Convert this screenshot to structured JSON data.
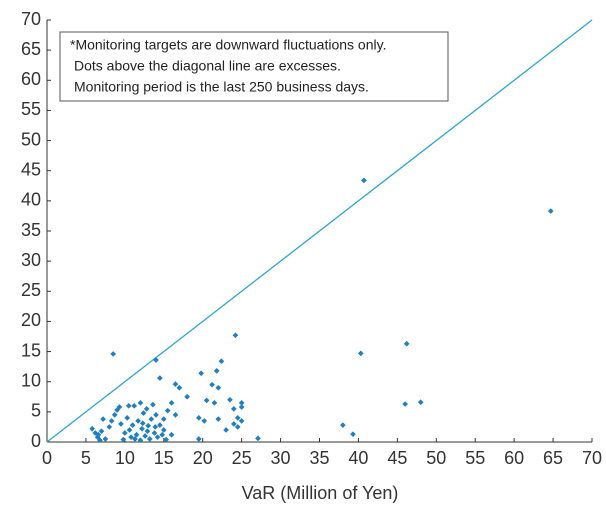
{
  "chart_data": {
    "type": "scatter",
    "notes": [
      "*Monitoring targets are downward fluctuations only.",
      "Dots above the diagonal line are excesses.",
      "Monitoring period is the last 250 business days."
    ],
    "xlabel": "VaR (Million of Yen)",
    "color": "#1f7fc0",
    "line_color": "#2aa5cc",
    "x": [
      40.7,
      64.7,
      8.5,
      14,
      40.3,
      46.2,
      46,
      48,
      24.2,
      38,
      39.3,
      27.1,
      22.4,
      21.8,
      19.8,
      21.2,
      22,
      16.5,
      17,
      14.5,
      18,
      20.5,
      21.5,
      23.5,
      25,
      25,
      24,
      22,
      24.5,
      25,
      24,
      24.5,
      23,
      19.5,
      20.2,
      19.5,
      16.5,
      16,
      16,
      15,
      5.8,
      6.2,
      6.5,
      6.8,
      7,
      7.2,
      6.6,
      7.5,
      8,
      8.3,
      8.7,
      9,
      9.3,
      9.5,
      9.8,
      10,
      10.3,
      10.5,
      10.8,
      11,
      11.2,
      11.5,
      11.7,
      12,
      12,
      12.2,
      12.4,
      12.6,
      12.8,
      13,
      13.2,
      13.4,
      13.6,
      13.8,
      14,
      14.2,
      14.5,
      14.8,
      15,
      15.3,
      15.5,
      11.3,
      10.6,
      12.9,
      13.9,
      12.3
    ],
    "values": [
      43.4,
      38.3,
      14.6,
      13.6,
      14.7,
      16.3,
      6.3,
      6.6,
      17.7,
      2.8,
      1.3,
      0.6,
      13.4,
      11.8,
      11.4,
      9.5,
      9,
      9.6,
      9,
      10.6,
      7.5,
      6.9,
      6.5,
      7,
      6.5,
      5.8,
      5.5,
      3.8,
      4,
      3.5,
      3,
      2.5,
      2,
      4,
      3.5,
      0.5,
      4.5,
      6.5,
      1.2,
      2,
      2.2,
      1.5,
      0.8,
      0.3,
      1.8,
      3.8,
      1.2,
      0.5,
      2.5,
      3.5,
      4.5,
      5.3,
      5.8,
      3,
      0.4,
      1.5,
      4,
      6,
      0.8,
      2.8,
      6,
      1.2,
      3.5,
      6.5,
      0.3,
      2.2,
      4.8,
      1,
      5.5,
      2.7,
      0.5,
      3.8,
      6.2,
      1.5,
      4.5,
      0.8,
      2.8,
      1.2,
      3.8,
      0.4,
      5.2,
      0.5,
      2,
      1.8,
      2.5,
      3.1
    ],
    "xlim": [
      0,
      70
    ],
    "ylim": [
      0,
      70
    ],
    "xticks": [
      0,
      5,
      10,
      15,
      20,
      25,
      30,
      35,
      40,
      45,
      50,
      55,
      60,
      65,
      70
    ],
    "yticks": [
      0,
      5,
      10,
      15,
      20,
      25,
      30,
      35,
      40,
      45,
      50,
      55,
      60,
      65,
      70
    ]
  }
}
